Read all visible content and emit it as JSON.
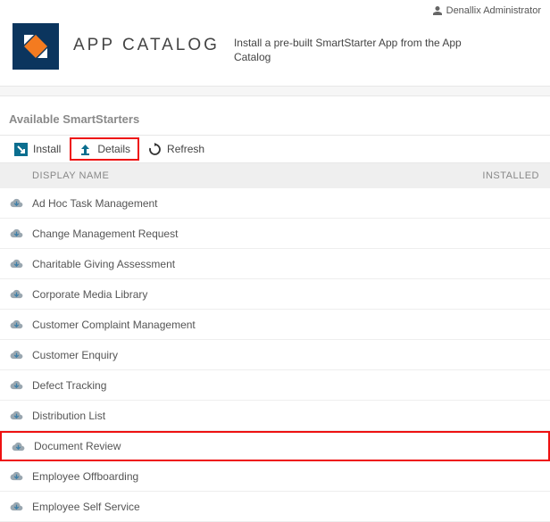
{
  "user": {
    "name": "Denallix Administrator"
  },
  "header": {
    "title": "APP CATALOG",
    "subtitle": "Install a pre-built SmartStarter App from the App Catalog"
  },
  "section": {
    "title": "Available SmartStarters"
  },
  "toolbar": {
    "install": "Install",
    "details": "Details",
    "refresh": "Refresh"
  },
  "columns": {
    "display_name": "DISPLAY NAME",
    "installed": "INSTALLED"
  },
  "rows": [
    {
      "label": "Ad Hoc Task Management",
      "highlighted": false
    },
    {
      "label": "Change Management Request",
      "highlighted": false
    },
    {
      "label": "Charitable Giving Assessment",
      "highlighted": false
    },
    {
      "label": "Corporate Media Library",
      "highlighted": false
    },
    {
      "label": "Customer Complaint Management",
      "highlighted": false
    },
    {
      "label": "Customer Enquiry",
      "highlighted": false
    },
    {
      "label": "Defect Tracking",
      "highlighted": false
    },
    {
      "label": "Distribution List",
      "highlighted": false
    },
    {
      "label": "Document Review",
      "highlighted": true
    },
    {
      "label": "Employee Offboarding",
      "highlighted": false
    },
    {
      "label": "Employee Self Service",
      "highlighted": false
    }
  ],
  "colors": {
    "brand_bg": "#0b355e",
    "brand_orange": "#f47b20",
    "brand_white": "#ffffff",
    "highlight_border": "#e11"
  }
}
